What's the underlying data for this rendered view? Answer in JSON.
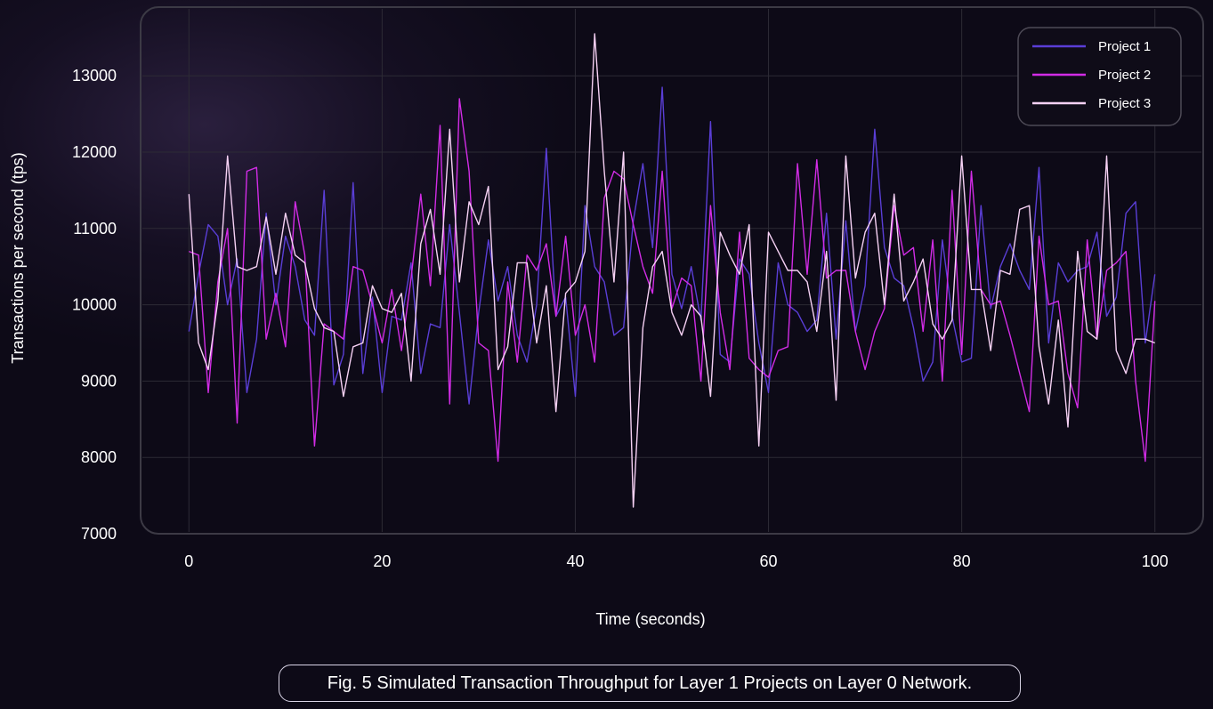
{
  "caption": "Fig. 5 Simulated Transaction Throughput for Layer 1 Projects on Layer 0 Network.",
  "chart_data": {
    "type": "line",
    "title": "",
    "xlabel": "Time (seconds)",
    "ylabel": "Transactions per second (tps)",
    "xlim": [
      -5,
      105
    ],
    "ylim": [
      7000,
      13900
    ],
    "xticks": [
      0,
      20,
      40,
      60,
      80,
      100
    ],
    "yticks": [
      7000,
      8000,
      9000,
      10000,
      11000,
      12000,
      13000
    ],
    "grid": true,
    "legend_position": "top-right",
    "x": [
      0,
      1,
      2,
      3,
      4,
      5,
      6,
      7,
      8,
      9,
      10,
      11,
      12,
      13,
      14,
      15,
      16,
      17,
      18,
      19,
      20,
      21,
      22,
      23,
      24,
      25,
      26,
      27,
      28,
      29,
      30,
      31,
      32,
      33,
      34,
      35,
      36,
      37,
      38,
      39,
      40,
      41,
      42,
      43,
      44,
      45,
      46,
      47,
      48,
      49,
      50,
      51,
      52,
      53,
      54,
      55,
      56,
      57,
      58,
      59,
      60,
      61,
      62,
      63,
      64,
      65,
      66,
      67,
      68,
      69,
      70,
      71,
      72,
      73,
      74,
      75,
      76,
      77,
      78,
      79,
      80,
      81,
      82,
      83,
      84,
      85,
      86,
      87,
      88,
      89,
      90,
      91,
      92,
      93,
      94,
      95,
      96,
      97,
      98,
      99,
      100
    ],
    "series": [
      {
        "name": "Project 1",
        "color": "#5a3ed6",
        "values": [
          9650,
          10400,
          11050,
          10900,
          10000,
          10600,
          8850,
          9550,
          11200,
          10000,
          10900,
          10500,
          9800,
          9600,
          11500,
          8950,
          9350,
          11600,
          9100,
          10100,
          8850,
          9850,
          9800,
          10550,
          9100,
          9750,
          9700,
          11050,
          9900,
          8700,
          9900,
          10850,
          10050,
          10500,
          9600,
          9250,
          10000,
          12050,
          9850,
          10100,
          8800,
          11300,
          10500,
          10300,
          9600,
          9700,
          11100,
          11850,
          10750,
          12850,
          10400,
          9950,
          10500,
          9800,
          12400,
          9350,
          9250,
          10600,
          10400,
          9500,
          8850,
          10550,
          10000,
          9900,
          9650,
          9800,
          11200,
          9550,
          11100,
          9650,
          10250,
          12300,
          10750,
          10350,
          10250,
          9700,
          9000,
          9250,
          10850,
          9850,
          9250,
          9300,
          11300,
          9950,
          10500,
          10800,
          10450,
          10200,
          11800,
          9500,
          10550,
          10300,
          10450,
          10500,
          10950,
          9850,
          10100,
          11200,
          11350,
          9500,
          10400
        ]
      },
      {
        "name": "Project 2",
        "color": "#d22ce6",
        "values": [
          10700,
          10650,
          8850,
          10300,
          11000,
          8450,
          11750,
          11800,
          9550,
          10150,
          9450,
          11350,
          10650,
          8150,
          9750,
          9650,
          9550,
          10500,
          10450,
          10000,
          9500,
          10200,
          9400,
          10350,
          11450,
          10250,
          12350,
          8700,
          12700,
          11750,
          9500,
          9400,
          7950,
          10300,
          9250,
          10650,
          10450,
          10800,
          9850,
          10900,
          9600,
          10000,
          9250,
          11400,
          11750,
          11650,
          11050,
          10500,
          10150,
          11750,
          9950,
          10350,
          10250,
          9000,
          11300,
          9900,
          9150,
          10950,
          9300,
          9150,
          9050,
          9400,
          9450,
          11850,
          10400,
          11900,
          10350,
          10450,
          10450,
          9650,
          9150,
          9650,
          9950,
          11300,
          10650,
          10750,
          9650,
          10850,
          9000,
          11500,
          9350,
          11750,
          10200,
          10000,
          10050,
          9600,
          9100,
          8600,
          10900,
          10000,
          10050,
          9100,
          8650,
          10850,
          9550,
          10450,
          10550,
          10700,
          9000,
          7950,
          10050
        ]
      },
      {
        "name": "Project 3",
        "color": "#f6d1f4",
        "values": [
          11450,
          9500,
          9150,
          10050,
          11950,
          10500,
          10450,
          10500,
          11150,
          10400,
          11200,
          10650,
          10550,
          9950,
          9700,
          9650,
          8800,
          9450,
          9500,
          10250,
          9950,
          9900,
          10150,
          9000,
          10800,
          11250,
          10400,
          12300,
          10300,
          11350,
          11050,
          11550,
          9150,
          9450,
          10550,
          10550,
          9500,
          10250,
          8600,
          10150,
          10300,
          10700,
          13550,
          11750,
          10300,
          12000,
          7350,
          9700,
          10500,
          10700,
          9900,
          9600,
          10000,
          9850,
          8800,
          10950,
          10650,
          10400,
          11050,
          8150,
          10950,
          10700,
          10450,
          10450,
          10300,
          9650,
          10700,
          8750,
          11950,
          10350,
          10950,
          11200,
          10000,
          11450,
          10050,
          10300,
          10600,
          9750,
          9550,
          9800,
          11950,
          10200,
          10200,
          9400,
          10450,
          10400,
          11250,
          11300,
          9450,
          8700,
          9800,
          8400,
          10700,
          9650,
          9550,
          11950,
          9400,
          9100,
          9550,
          9550,
          9500
        ]
      }
    ]
  }
}
